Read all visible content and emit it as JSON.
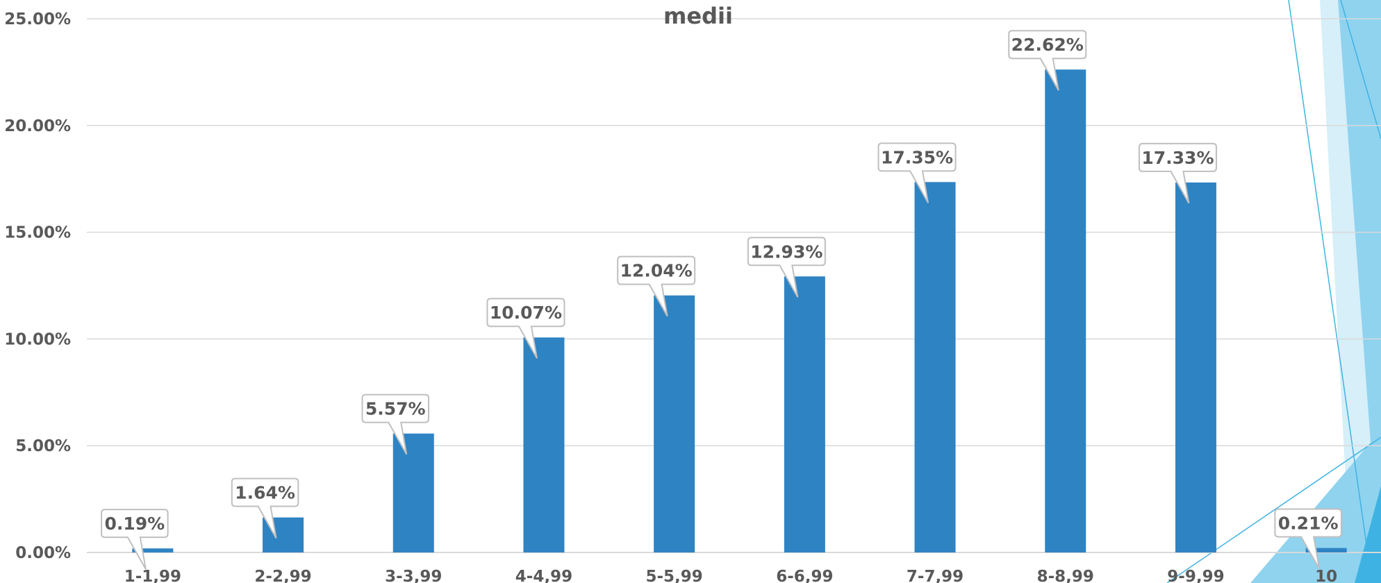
{
  "chart_data": {
    "type": "bar",
    "title": "medii",
    "categories": [
      "1-1,99",
      "2-2,99",
      "3-3,99",
      "4-4,99",
      "5-5,99",
      "6-6,99",
      "7-7,99",
      "8-8,99",
      "9-9,99",
      "10"
    ],
    "values": [
      0.19,
      1.64,
      5.57,
      10.07,
      12.04,
      12.93,
      17.35,
      22.62,
      17.33,
      0.21
    ],
    "value_labels": [
      "0.19%",
      "1.64%",
      "5.57%",
      "10.07%",
      "12.04%",
      "12.93%",
      "17.35%",
      "22.62%",
      "17.33%",
      "0.21%"
    ],
    "y_ticks": [
      0,
      5,
      10,
      15,
      20,
      25
    ],
    "y_tick_labels": [
      "0.00%",
      "5.00%",
      "10.00%",
      "15.00%",
      "20.00%",
      "25.00%"
    ],
    "ylim": [
      0,
      25
    ],
    "grid": true,
    "xlabel": "",
    "ylabel": ""
  },
  "colors": {
    "bar": "#2e83c3",
    "grid": "#d9d9d9",
    "text": "#595959",
    "label_border": "#bfbfbf",
    "accent_light": "#d6eff9",
    "accent_mid": "#8fd3ef",
    "accent_dark": "#3eb3e3"
  }
}
